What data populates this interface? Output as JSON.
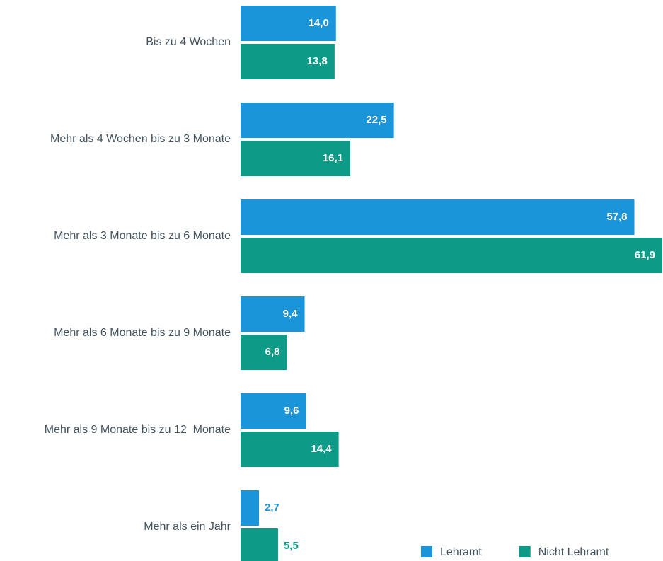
{
  "chart_data": {
    "type": "bar",
    "orientation": "horizontal",
    "categories": [
      "Bis zu 4 Wochen",
      "Mehr als 4 Wochen bis zu 3 Monate",
      "Mehr als 3 Monate bis zu 6 Monate",
      "Mehr als 6 Monate bis zu 9 Monate",
      "Mehr als 9 Monate bis zu 12  Monate",
      "Mehr als ein Jahr"
    ],
    "series": [
      {
        "name": "Lehramt",
        "color": "#1b95d9",
        "values": [
          14.0,
          22.5,
          57.8,
          9.4,
          9.6,
          2.7
        ],
        "value_labels": [
          "14,0",
          "22,5",
          "57,8",
          "9,4",
          "9,6",
          "2,7"
        ]
      },
      {
        "name": "Nicht Lehramt",
        "color": "#0d9b88",
        "values": [
          13.8,
          16.1,
          61.9,
          6.8,
          14.4,
          5.5
        ],
        "value_labels": [
          "13,8",
          "16,1",
          "61,9",
          "6,8",
          "14,4",
          "5,5"
        ]
      }
    ],
    "legend": "lower right"
  }
}
